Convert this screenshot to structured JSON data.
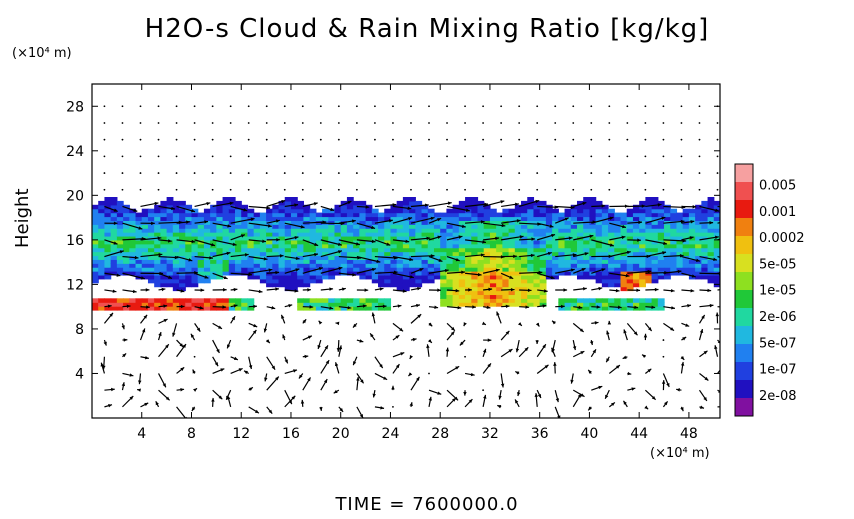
{
  "title": "H2O-s Cloud & Rain Mixing Ratio [kg/kg]",
  "y_unit_label": "(×10⁴ m)",
  "x_unit_label": "(×10⁴ m)",
  "footer": {
    "time_label": "TIME",
    "time_value": "7600000.0"
  },
  "chart_data": {
    "type": "heatmap",
    "title": "H2O-s Cloud & Rain Mixing Ratio [kg/kg]",
    "xlabel": "",
    "ylabel": "Height",
    "xlim": [
      0,
      50.5
    ],
    "ylim": [
      0,
      30
    ],
    "x_ticks": [
      "4",
      "8",
      "12",
      "16",
      "20",
      "24",
      "28",
      "32",
      "36",
      "40",
      "44",
      "48"
    ],
    "x_tick_values": [
      4,
      8,
      12,
      16,
      20,
      24,
      28,
      32,
      36,
      40,
      44,
      48
    ],
    "y_ticks": [
      "4",
      "8",
      "12",
      "16",
      "20",
      "24",
      "28"
    ],
    "y_tick_values": [
      4,
      8,
      12,
      16,
      20,
      24,
      28
    ],
    "x_unit": "×10⁴ m",
    "y_unit": "×10⁴ m",
    "overlay": "wind vectors (arrows)",
    "colorbar": {
      "labels": [
        "0.005",
        "0.001",
        "0.0002",
        "5e-05",
        "1e-05",
        "2e-06",
        "5e-07",
        "1e-07",
        "2e-08"
      ],
      "colors": [
        "#f6a0a0",
        "#f05050",
        "#e81a10",
        "#f08010",
        "#f0c010",
        "#d8e020",
        "#8ee020",
        "#20c838",
        "#20d8a0",
        "#20b8e0",
        "#2080f0",
        "#2040e0",
        "#2010c0",
        "#8010a0"
      ]
    },
    "cloud_layer": {
      "main_band_bottom": 12,
      "main_band_top": 19,
      "lower_band_bottom": 9.5,
      "lower_band_top": 10.5,
      "convective_core_x": [
        28,
        36
      ],
      "convective_core_top": 17.5
    }
  }
}
